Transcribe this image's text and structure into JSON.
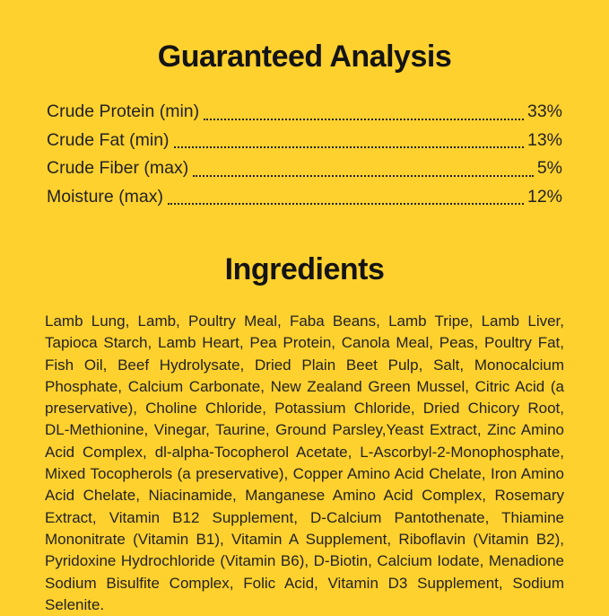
{
  "colors": {
    "background": "#FFD12E",
    "text": "#222222",
    "heading": "#141414"
  },
  "guaranteed_analysis": {
    "title": "Guaranteed Analysis",
    "rows": [
      {
        "label": "Crude Protein (min)",
        "value": "33%"
      },
      {
        "label": "Crude Fat (min)",
        "value": "13%"
      },
      {
        "label": "Crude Fiber (max)",
        "value": "5%"
      },
      {
        "label": "Moisture (max)",
        "value": "12%"
      }
    ]
  },
  "ingredients": {
    "title": "Ingredients",
    "text": "Lamb Lung, Lamb, Poultry Meal, Faba Beans, Lamb Tripe, Lamb Liver, Tapioca Starch, Lamb Heart, Pea Protein, Canola Meal, Peas, Poultry Fat, Fish Oil, Beef Hydrolysate, Dried Plain Beet Pulp, Salt, Monocalcium Phosphate, Calcium Carbonate, New Zealand Green Mussel, Citric Acid (a preservative), Choline Chloride, Potassium Chloride, Dried Chicory Root, DL-Methionine, Vinegar, Taurine, Ground Parsley,Yeast Extract, Zinc Amino Acid Complex, dl-alpha-Tocopherol Acetate, L-Ascorbyl-2-Monophosphate, Mixed Tocopherols (a preservative), Copper Amino Acid Chelate, Iron Amino Acid Chelate, Niacinamide, Manganese Amino Acid Complex, Rosemary Extract, Vitamin B12 Supplement, D-Calcium Pantothenate, Thiamine Mononitrate (Vitamin B1), Vitamin A Supplement, Riboflavin (Vitamin B2), Pyridoxine Hydrochloride (Vitamin B6), D-Biotin, Calcium Iodate, Menadione Sodium Bisulfite Complex, Folic Acid, Vitamin D3 Supplement, Sodium Selenite."
  }
}
